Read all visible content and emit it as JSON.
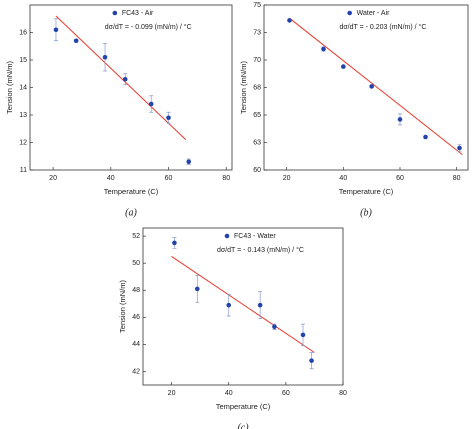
{
  "chart_data": [
    {
      "type": "scatter",
      "caption": "(a)",
      "xlabel": "Temperature (C)",
      "ylabel": "Tension (mN/m)",
      "annotation": "dσ/dT = - 0.099 (mN/m) / °C",
      "xlim": [
        12,
        82
      ],
      "xticks": [
        20,
        40,
        60,
        80
      ],
      "ylim": [
        11,
        17
      ],
      "yticks": [
        11,
        12,
        13,
        14,
        15,
        16
      ],
      "series": [
        {
          "name": "FC43 - Air",
          "color": "#2244aa",
          "x": [
            21,
            28,
            38,
            45,
            54,
            60,
            67
          ],
          "values": [
            16.1,
            15.7,
            15.1,
            14.3,
            13.4,
            12.9,
            11.3
          ],
          "errors": [
            0.4,
            0.05,
            0.5,
            0.2,
            0.3,
            0.2,
            0.1
          ]
        }
      ],
      "fit": {
        "color": "#e8392b",
        "x": [
          21,
          66
        ],
        "values": [
          16.6,
          12.1
        ]
      }
    },
    {
      "type": "scatter",
      "caption": "(b)",
      "xlabel": "Temperature (C)",
      "ylabel": "Tension (mN/m)",
      "annotation": "dσ/dT = - 0.203 (mN/m) / °C",
      "xlim": [
        12,
        84
      ],
      "xticks": [
        20,
        40,
        60,
        80
      ],
      "ylim": [
        60,
        75
      ],
      "yticks": [
        60,
        {
          "value": 62.5,
          "label": "63"
        },
        65,
        {
          "value": 67.5,
          "label": "68"
        },
        70,
        {
          "value": 72.5,
          "label": "73"
        },
        75
      ],
      "series": [
        {
          "name": "Water - Air",
          "color": "#2244aa",
          "x": [
            21,
            33,
            40,
            50,
            60,
            69,
            81
          ],
          "values": [
            73.6,
            71.0,
            69.4,
            67.6,
            64.6,
            63.0,
            62.0
          ],
          "errors": [
            0.1,
            0.2,
            0.1,
            0.1,
            0.5,
            0.1,
            0.3
          ]
        }
      ],
      "fit": {
        "color": "#e8392b",
        "x": [
          21,
          82
        ],
        "values": [
          73.8,
          61.4
        ]
      }
    },
    {
      "type": "scatter",
      "caption": "(c)",
      "xlabel": "Temperature (C)",
      "ylabel": "Tension (mN/m)",
      "annotation": "dσ/dT = - 0.143 (mN/m) / °C",
      "xlim": [
        10,
        80
      ],
      "xticks": [
        20,
        40,
        60,
        80
      ],
      "ylim": [
        41,
        52.6
      ],
      "yticks": [
        42,
        44,
        46,
        48,
        50,
        52
      ],
      "series": [
        {
          "name": "FC43 - Water",
          "color": "#2244aa",
          "x": [
            21,
            29,
            40,
            51,
            56,
            66,
            69
          ],
          "values": [
            51.5,
            48.1,
            46.9,
            46.9,
            45.3,
            44.7,
            42.8
          ],
          "errors": [
            0.4,
            1.0,
            0.8,
            1.0,
            0.2,
            0.8,
            0.6
          ]
        }
      ],
      "fit": {
        "color": "#e8392b",
        "x": [
          20,
          70
        ],
        "values": [
          50.5,
          43.4
        ]
      }
    }
  ]
}
